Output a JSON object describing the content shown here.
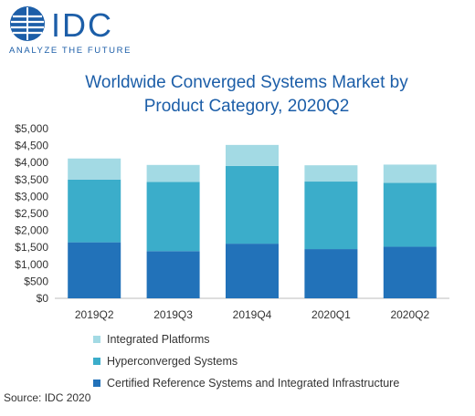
{
  "brand": {
    "name": "IDC",
    "tagline": "ANALYZE THE FUTURE",
    "color": "#1c5ea8"
  },
  "title_line1": "Worldwide Converged Systems Market by",
  "title_line2": "Product Category, 2020Q2",
  "source": "Source: IDC 2020",
  "chart_data": {
    "type": "bar",
    "stacked": true,
    "title": "Worldwide Converged Systems Market by Product Category, 2020Q2",
    "xlabel": "",
    "ylabel": "",
    "categories": [
      "2019Q2",
      "2019Q3",
      "2019Q4",
      "2020Q1",
      "2020Q2"
    ],
    "ylim": [
      0,
      5000
    ],
    "y_ticks": [
      "$0",
      "$500",
      "$1,000",
      "$1,500",
      "$2,000",
      "$2,500",
      "$3,000",
      "$3,500",
      "$4,000",
      "$4,500",
      "$5,000"
    ],
    "grid": false,
    "legend_position": "bottom",
    "series": [
      {
        "name": "Certified Reference Systems and Integrated Infrastructure",
        "color": "#2272b9",
        "values": [
          1650,
          1390,
          1610,
          1450,
          1520
        ]
      },
      {
        "name": "Hyperconverged Systems",
        "color": "#3badca",
        "values": [
          1850,
          2040,
          2290,
          1990,
          1880
        ]
      },
      {
        "name": "Integrated Platforms",
        "color": "#a3dae4",
        "values": [
          620,
          500,
          620,
          480,
          540
        ]
      }
    ]
  }
}
